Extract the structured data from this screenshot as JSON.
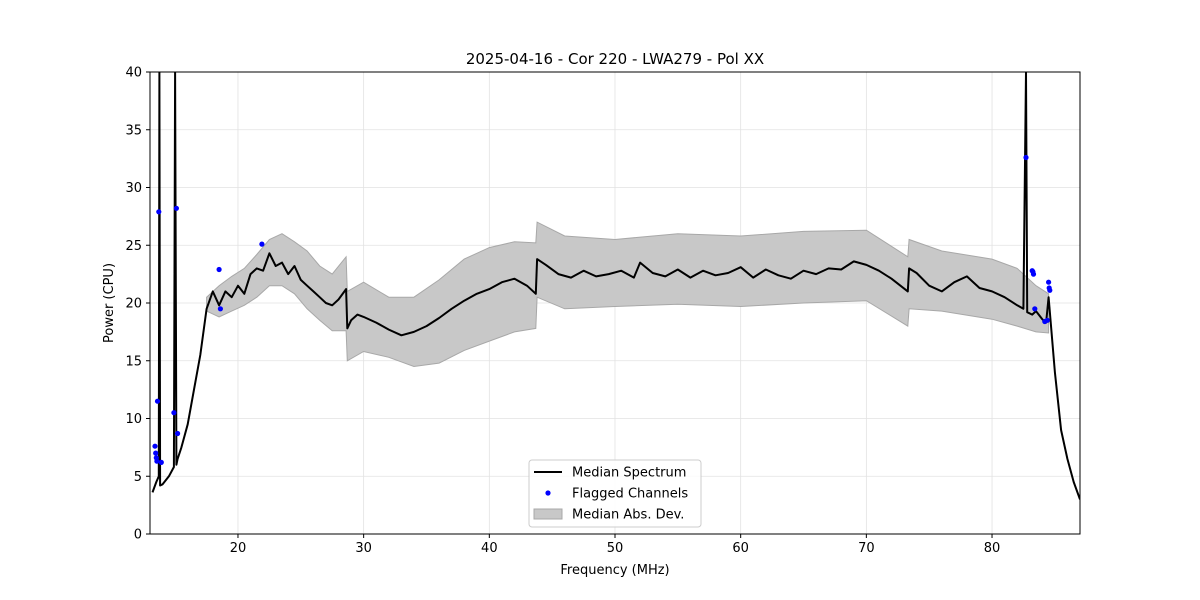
{
  "chart_data": {
    "type": "line",
    "title": "2025-04-16 - Cor 220 - LWA279 - Pol XX",
    "xlabel": "Frequency (MHz)",
    "ylabel": "Power (CPU)",
    "xlim": [
      13,
      87
    ],
    "ylim": [
      0,
      40
    ],
    "xticks": [
      "20",
      "30",
      "40",
      "50",
      "60",
      "70",
      "80"
    ],
    "yticks": [
      "0",
      "5",
      "10",
      "15",
      "20",
      "25",
      "30",
      "35",
      "40"
    ],
    "grid": true,
    "legend_position": "lower-center",
    "legend": [
      {
        "label": "Median Spectrum",
        "kind": "line",
        "color": "#000000"
      },
      {
        "label": "Flagged Channels",
        "kind": "marker",
        "color": "#0000ff"
      },
      {
        "label": "Median Abs. Dev.",
        "kind": "patch",
        "color": "#c8c8c8"
      }
    ],
    "series": [
      {
        "name": "Median Spectrum",
        "color": "#000000",
        "x": [
          13.2,
          13.5,
          13.7,
          13.75,
          13.8,
          14.0,
          14.5,
          14.9,
          15.0,
          15.1,
          15.2,
          15.5,
          16.0,
          16.5,
          17.0,
          17.5,
          18.0,
          18.5,
          19.0,
          19.5,
          20.0,
          20.5,
          21.0,
          21.5,
          22.0,
          22.5,
          23.0,
          23.5,
          24.0,
          24.5,
          25.0,
          25.5,
          26.0,
          26.5,
          27.0,
          27.5,
          28.0,
          28.6,
          28.7,
          29.0,
          29.5,
          30.0,
          31.0,
          32.0,
          33.0,
          34.0,
          35.0,
          36.0,
          37.0,
          38.0,
          39.0,
          40.0,
          41.0,
          42.0,
          43.0,
          43.7,
          43.8,
          44.5,
          45.5,
          46.5,
          47.5,
          48.5,
          49.5,
          50.5,
          51.5,
          52.0,
          53.0,
          54.0,
          55.0,
          56.0,
          57.0,
          58.0,
          59.0,
          60.0,
          61.0,
          62.0,
          63.0,
          64.0,
          65.0,
          66.0,
          67.0,
          68.0,
          69.0,
          70.0,
          71.0,
          72.0,
          73.3,
          73.4,
          74.0,
          75.0,
          76.0,
          77.0,
          78.0,
          79.0,
          80.0,
          81.0,
          82.0,
          82.5,
          82.7,
          82.8,
          83.2,
          83.5,
          84.0,
          84.3,
          84.5,
          85.0,
          85.5,
          86.0,
          86.5,
          87.0
        ],
        "values": [
          3.6,
          4.5,
          5.0,
          40.0,
          4.2,
          4.3,
          5.0,
          5.8,
          40.0,
          6.0,
          6.5,
          7.5,
          9.5,
          12.5,
          15.5,
          19.5,
          21.0,
          19.8,
          21.0,
          20.5,
          21.5,
          20.8,
          22.5,
          23.0,
          22.8,
          24.3,
          23.2,
          23.5,
          22.5,
          23.2,
          22.0,
          21.5,
          21.0,
          20.5,
          20.0,
          19.8,
          20.3,
          21.2,
          17.8,
          18.5,
          19.0,
          18.8,
          18.3,
          17.7,
          17.2,
          17.5,
          18.0,
          18.7,
          19.5,
          20.2,
          20.8,
          21.2,
          21.8,
          22.1,
          21.5,
          20.8,
          23.8,
          23.3,
          22.5,
          22.2,
          22.8,
          22.3,
          22.5,
          22.8,
          22.2,
          23.5,
          22.6,
          22.3,
          22.9,
          22.2,
          22.8,
          22.4,
          22.6,
          23.1,
          22.2,
          22.9,
          22.4,
          22.1,
          22.8,
          22.5,
          23.0,
          22.9,
          23.6,
          23.3,
          22.8,
          22.1,
          21.0,
          23.0,
          22.6,
          21.5,
          21.0,
          21.8,
          22.3,
          21.3,
          21.0,
          20.5,
          19.8,
          19.5,
          40.0,
          19.2,
          19.0,
          19.3,
          18.6,
          18.3,
          20.5,
          14.0,
          9.0,
          6.5,
          4.5,
          3.0
        ]
      }
    ],
    "mad_band": {
      "name": "Median Abs. Dev.",
      "color": "#c8c8c8",
      "x": [
        17.5,
        18.5,
        19.5,
        20.5,
        21.5,
        22.5,
        23.5,
        24.5,
        25.5,
        26.5,
        27.5,
        28.6,
        28.7,
        30.0,
        32.0,
        34.0,
        36.0,
        38.0,
        40.0,
        42.0,
        43.7,
        43.8,
        46.0,
        50.0,
        55.0,
        60.0,
        65.0,
        70.0,
        73.3,
        73.4,
        76.0,
        80.0,
        82.0,
        83.5,
        84.5
      ],
      "lower": [
        19.3,
        18.8,
        19.3,
        19.8,
        20.5,
        21.5,
        21.5,
        20.8,
        19.5,
        18.5,
        17.6,
        17.6,
        15.0,
        15.8,
        15.3,
        14.5,
        14.8,
        15.9,
        16.7,
        17.5,
        17.8,
        20.5,
        19.5,
        19.7,
        19.9,
        19.7,
        20.0,
        20.2,
        18.0,
        19.5,
        19.3,
        18.6,
        18.0,
        17.5,
        17.4
      ],
      "upper": [
        20.5,
        21.5,
        22.3,
        23.0,
        24.2,
        25.5,
        26.0,
        25.3,
        24.5,
        23.2,
        22.5,
        24.0,
        21.0,
        21.8,
        20.5,
        20.5,
        22.0,
        23.8,
        24.8,
        25.3,
        25.2,
        27.0,
        25.8,
        25.5,
        26.0,
        25.8,
        26.2,
        26.3,
        24.0,
        25.5,
        24.5,
        23.8,
        23.0,
        21.5,
        20.8
      ]
    },
    "flagged_channels": {
      "name": "Flagged Channels",
      "color": "#0000ff",
      "x": [
        13.4,
        13.45,
        13.5,
        13.55,
        13.6,
        13.7,
        13.9,
        14.9,
        15.1,
        15.2,
        18.5,
        18.6,
        21.9,
        82.7,
        83.2,
        83.25,
        83.3,
        83.4,
        84.2,
        84.4,
        84.5,
        84.55,
        84.6
      ],
      "values": [
        7.6,
        7.0,
        6.6,
        6.3,
        11.5,
        27.9,
        6.2,
        10.5,
        28.2,
        8.7,
        22.9,
        19.5,
        25.1,
        32.6,
        22.8,
        22.7,
        22.5,
        19.5,
        18.4,
        18.5,
        21.8,
        21.3,
        21.1
      ]
    }
  }
}
